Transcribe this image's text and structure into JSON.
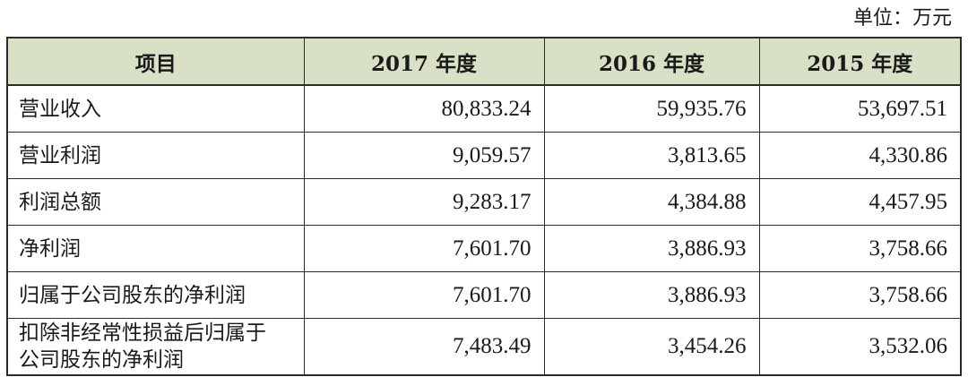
{
  "unit_label": "单位：万元",
  "table": {
    "headers": [
      "项目",
      "2017 年度",
      "2016 年度",
      "2015 年度"
    ],
    "rows": [
      {
        "item": "营业收入",
        "values": [
          "80,833.24",
          "59,935.76",
          "53,697.51"
        ]
      },
      {
        "item": "营业利润",
        "values": [
          "9,059.57",
          "3,813.65",
          "4,330.86"
        ]
      },
      {
        "item": "利润总额",
        "values": [
          "9,283.17",
          "4,384.88",
          "4,457.95"
        ]
      },
      {
        "item": "净利润",
        "values": [
          "7,601.70",
          "3,886.93",
          "3,758.66"
        ]
      },
      {
        "item": "归属于公司股东的净利润",
        "values": [
          "7,601.70",
          "3,886.93",
          "3,758.66"
        ]
      },
      {
        "item_line1": "扣除非经常性损益后归属于",
        "item_line2": "公司股东的净利润",
        "values": [
          "7,483.49",
          "3,454.26",
          "3,532.06"
        ]
      }
    ]
  },
  "colors": {
    "header_bg": "#d8e0c6",
    "border": "#2b2b2b"
  }
}
